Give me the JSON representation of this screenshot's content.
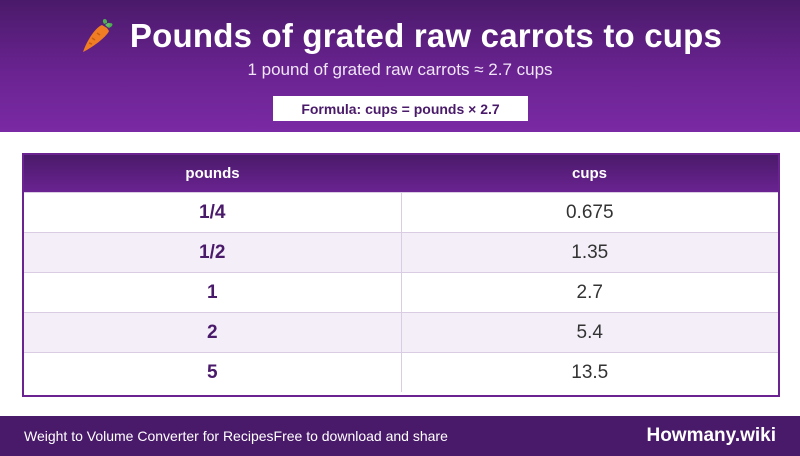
{
  "header": {
    "icon": "carrot-icon",
    "title": "Pounds of grated raw carrots to cups",
    "subtitle": "1 pound of grated raw carrots ≈ 2.7 cups",
    "formula": "Formula: cups = pounds × 2.7"
  },
  "table": {
    "headers": [
      "pounds",
      "cups"
    ],
    "rows": [
      {
        "pounds": "1/4",
        "cups": "0.675"
      },
      {
        "pounds": "1/2",
        "cups": "1.35"
      },
      {
        "pounds": "1",
        "cups": "2.7"
      },
      {
        "pounds": "2",
        "cups": "5.4"
      },
      {
        "pounds": "5",
        "cups": "13.5"
      }
    ]
  },
  "footer": {
    "app_name": "Weight to Volume Converter for Recipes",
    "tagline": "Free to download and share",
    "brand": "Howmany.wiki"
  },
  "colors": {
    "primary": "#6a2391",
    "primary_dark": "#4a1a6a",
    "row_alt": "#f4eef8",
    "carrot_orange": "#f07c24",
    "carrot_green": "#4caf50"
  }
}
